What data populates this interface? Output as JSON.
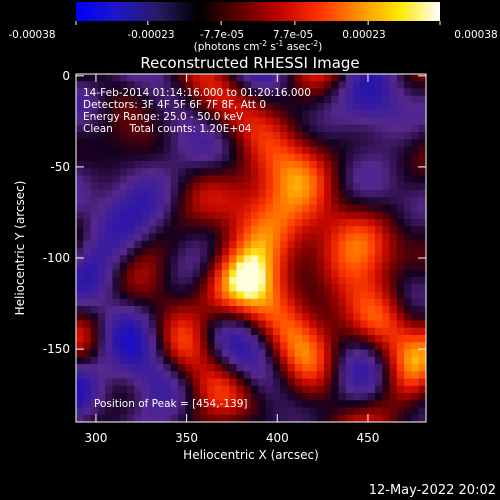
{
  "colorbar": {
    "ticks": [
      "-0.00038",
      "-0.00023",
      "-7.7e-05",
      "7.7e-05",
      "0.00023",
      "0.00038"
    ],
    "units_main": "(photons cm",
    "units_exp1": "-2",
    "units_mid": " s",
    "units_exp2": "-1",
    "units_end": " asec",
    "units_exp3": "-2",
    "units_close": ")",
    "range": [
      -0.00038,
      0.00038
    ],
    "stops": [
      "#0000ff",
      "#1e16c8",
      "#2a1a6a",
      "#000000",
      "#5a0000",
      "#c00000",
      "#ff3000",
      "#ff9000",
      "#ffe800",
      "#ffffff"
    ]
  },
  "info": {
    "line1": "14-Feb-2014 01:14:16.000 to 01:20:16.000",
    "line2": "Detectors: 3F 4F 5F 6F 7F 8F, Att 0",
    "line3": "Energy Range: 25.0 - 50.0 keV",
    "line4": "Clean     Total counts: 1.20E+04",
    "peak": "Position of Peak = [454,-139]"
  },
  "footer_date": "12-May-2022 20:02",
  "chart_data": {
    "type": "heatmap",
    "title": "Reconstructed RHESSI Image",
    "xlabel": "Heliocentric X (arcsec)",
    "ylabel": "Heliocentric Y (arcsec)",
    "xlim": [
      289,
      482
    ],
    "ylim": [
      -190,
      1
    ],
    "xticks": [
      {
        "value": 300,
        "label": "300"
      },
      {
        "value": 350,
        "label": "350"
      },
      {
        "value": 400,
        "label": "400"
      },
      {
        "value": 450,
        "label": "450"
      }
    ],
    "yticks": [
      {
        "value": 0,
        "label": "0"
      },
      {
        "value": -50,
        "label": "-50"
      },
      {
        "value": -100,
        "label": "-100"
      },
      {
        "value": -150,
        "label": "-150"
      }
    ],
    "peak": {
      "x": 454,
      "y": -139
    }
  }
}
